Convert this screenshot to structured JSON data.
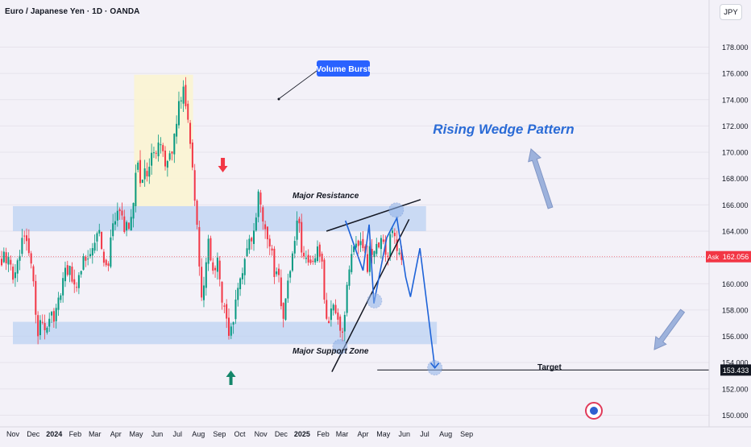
{
  "header": {
    "symbol_title": "Euro / Japanese Yen · 1D · OANDA",
    "currency_button": "JPY"
  },
  "y_axis": {
    "ticks": [
      "178.000",
      "176.000",
      "174.000",
      "172.000",
      "170.000",
      "168.000",
      "166.000",
      "164.000",
      "162.000",
      "160.000",
      "158.000",
      "156.000",
      "154.000",
      "152.000",
      "150.000"
    ]
  },
  "x_axis": {
    "labels": [
      "Nov",
      "Dec",
      "2024",
      "Feb",
      "Mar",
      "Apr",
      "May",
      "Jun",
      "Jul",
      "Aug",
      "Sep",
      "Oct",
      "Nov",
      "Dec",
      "2025",
      "Feb",
      "Mar",
      "Apr",
      "May",
      "Jun",
      "Jul",
      "Aug",
      "Sep"
    ]
  },
  "price_labels": {
    "ask_tag": "Ask",
    "ask_price": "162.056",
    "target_price": "153.433"
  },
  "annotations": {
    "volume_burst": "Volume Burst",
    "rising_wedge": "Rising Wedge Pattern",
    "major_resistance": "Major Resistance",
    "major_support": "Major Support Zone",
    "target": "Target"
  },
  "colors": {
    "background": "#f3f1f8",
    "candle_up": "#089981",
    "candle_down": "#f23645",
    "zone": "#bcd2f3",
    "highlight_box": "#faf3d4",
    "annotation_blue": "#2962ff",
    "ask_red": "#f23645",
    "target_navy": "#131722"
  },
  "chart_data": {
    "type": "candlestick",
    "symbol": "Euro / Japanese Yen",
    "interval": "1D",
    "exchange": "OANDA",
    "ylim": [
      149,
      180
    ],
    "ask_price": 162.056,
    "target_price": 153.433,
    "path": [
      [
        "2023-10-30",
        159.5
      ],
      [
        "2023-11-08",
        161.5
      ],
      [
        "2023-11-14",
        163.0
      ],
      [
        "2023-11-17",
        164.3
      ],
      [
        "2023-11-21",
        162.8
      ],
      [
        "2023-11-28",
        162.0
      ],
      [
        "2023-12-04",
        159.0
      ],
      [
        "2023-12-07",
        155.0
      ],
      [
        "2023-12-12",
        157.5
      ],
      [
        "2023-12-18",
        156.5
      ],
      [
        "2023-12-26",
        157.0
      ],
      [
        "2024-01-05",
        158.0
      ],
      [
        "2024-01-16",
        160.5
      ],
      [
        "2024-01-25",
        161.0
      ],
      [
        "2024-02-01",
        159.5
      ],
      [
        "2024-02-08",
        161.0
      ],
      [
        "2024-02-16",
        162.0
      ],
      [
        "2024-02-26",
        163.0
      ],
      [
        "2024-03-06",
        164.0
      ],
      [
        "2024-03-13",
        162.5
      ],
      [
        "2024-03-19",
        160.5
      ],
      [
        "2024-03-25",
        164.0
      ],
      [
        "2024-04-02",
        165.5
      ],
      [
        "2024-04-11",
        164.5
      ],
      [
        "2024-04-18",
        164.0
      ],
      [
        "2024-04-26",
        165.0
      ],
      [
        "2024-05-02",
        169.0
      ],
      [
        "2024-05-09",
        167.5
      ],
      [
        "2024-05-16",
        168.5
      ],
      [
        "2024-05-24",
        169.5
      ],
      [
        "2024-06-01",
        170.0
      ],
      [
        "2024-06-10",
        170.5
      ],
      [
        "2024-06-14",
        168.5
      ],
      [
        "2024-06-21",
        169.5
      ],
      [
        "2024-06-28",
        172.0
      ],
      [
        "2024-07-04",
        173.5
      ],
      [
        "2024-07-10",
        175.3
      ],
      [
        "2024-07-15",
        173.0
      ],
      [
        "2024-07-22",
        169.5
      ],
      [
        "2024-07-29",
        165.5
      ],
      [
        "2024-08-02",
        161.0
      ],
      [
        "2024-08-05",
        158.5
      ],
      [
        "2024-08-09",
        160.5
      ],
      [
        "2024-08-16",
        163.0
      ],
      [
        "2024-08-23",
        161.0
      ],
      [
        "2024-08-30",
        161.5
      ],
      [
        "2024-09-06",
        158.0
      ],
      [
        "2024-09-13",
        157.0
      ],
      [
        "2024-09-16",
        155.5
      ],
      [
        "2024-09-23",
        158.0
      ],
      [
        "2024-09-30",
        160.0
      ],
      [
        "2024-10-07",
        162.0
      ],
      [
        "2024-10-14",
        163.0
      ],
      [
        "2024-10-21",
        164.0
      ],
      [
        "2024-10-28",
        166.5
      ],
      [
        "2024-11-04",
        165.0
      ],
      [
        "2024-11-14",
        163.5
      ],
      [
        "2024-11-21",
        161.0
      ],
      [
        "2024-11-28",
        161.0
      ],
      [
        "2024-12-03",
        157.5
      ],
      [
        "2024-12-12",
        160.0
      ],
      [
        "2024-12-19",
        163.0
      ],
      [
        "2024-12-26",
        164.5
      ],
      [
        "2025-01-02",
        162.5
      ],
      [
        "2025-01-09",
        161.5
      ],
      [
        "2025-01-16",
        161.0
      ],
      [
        "2025-01-23",
        162.5
      ],
      [
        "2025-01-31",
        161.0
      ],
      [
        "2025-02-07",
        157.0
      ],
      [
        "2025-02-14",
        158.5
      ],
      [
        "2025-02-21",
        157.5
      ],
      [
        "2025-02-28",
        156.0
      ],
      [
        "2025-03-04",
        157.0
      ],
      [
        "2025-03-11",
        161.0
      ],
      [
        "2025-03-18",
        162.5
      ],
      [
        "2025-03-25",
        163.0
      ],
      [
        "2025-04-01",
        162.5
      ],
      [
        "2025-04-07",
        161.0
      ],
      [
        "2025-04-11",
        163.0
      ],
      [
        "2025-04-16",
        162.0
      ],
      [
        "2025-04-22",
        163.0
      ],
      [
        "2025-04-30",
        163.5
      ],
      [
        "2025-05-07",
        162.0
      ],
      [
        "2025-05-13",
        164.5
      ],
      [
        "2025-05-16",
        163.5
      ],
      [
        "2025-05-23",
        162.5
      ],
      [
        "2025-05-28",
        162.056
      ]
    ],
    "zones": [
      {
        "label": "Major Resistance",
        "from": 164.0,
        "to": 165.9
      },
      {
        "label": "Major Support Zone",
        "from": 155.4,
        "to": 157.1
      }
    ],
    "patterns": {
      "highlight_box": {
        "from": "2024-04-28",
        "to": "2024-07-24",
        "low": 165.9,
        "high": 175.9
      },
      "wedge_upper": [
        [
          "2025-02-06",
          164.0
        ],
        [
          "2025-06-25",
          166.4
        ]
      ],
      "wedge_lower": [
        [
          "2025-02-14",
          153.3
        ],
        [
          "2025-06-08",
          164.9
        ]
      ],
      "zigzag": [
        [
          "2025-03-06",
          164.8
        ],
        [
          "2025-04-01",
          161.0
        ],
        [
          "2025-04-10",
          164.5
        ],
        [
          "2025-04-17",
          158.5
        ],
        [
          "2025-05-06",
          163.5
        ],
        [
          "2025-05-21",
          165.0
        ],
        [
          "2025-06-03",
          160.5
        ],
        [
          "2025-06-10",
          159.0
        ],
        [
          "2025-06-24",
          162.7
        ],
        [
          "2025-07-16",
          153.6
        ]
      ],
      "wedge_circles": [
        [
          "2025-02-26",
          155.2
        ],
        [
          "2025-04-18",
          158.7
        ],
        [
          "2025-05-20",
          165.6
        ],
        [
          "2025-07-16",
          153.6
        ]
      ]
    }
  }
}
